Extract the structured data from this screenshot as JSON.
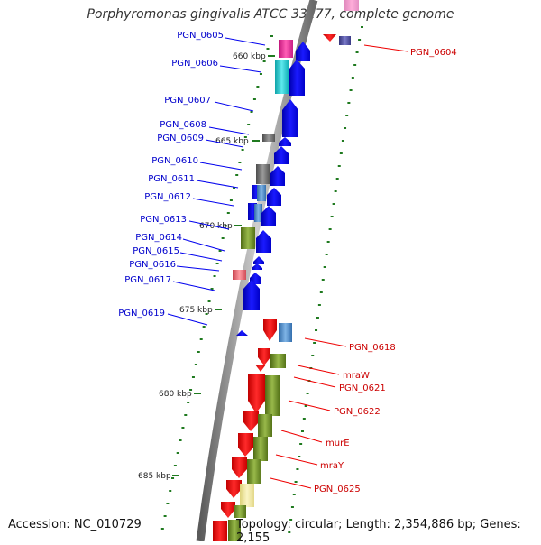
{
  "title": "Porphyromonas gingivalis ATCC 33277, complete genome",
  "accession": "Accession: NC_010729",
  "summary": "Topology: circular; Length: 2,354,886 bp; Genes: 2,155",
  "colors": {
    "forward": "#0000ee",
    "reverse": "#ee0000",
    "magenta": "#ee2b9a",
    "cyan": "#19c9cf",
    "gray": "#6e6e6e",
    "steel": "#4a87c3",
    "olive": "#6a8b22",
    "pink": "#e86a74",
    "cream": "#f3eaa1",
    "slate": "#4b4b9b",
    "tick": "#1f7a1f",
    "backbone": "#8c8c8c"
  },
  "scale": {
    "labels": [
      "660 kbp",
      "665 kbp",
      "670 kbp",
      "675 kbp",
      "680 kbp",
      "685 kbp"
    ]
  },
  "forward_labels": [
    "PGN_0605",
    "PGN_0606",
    "PGN_0607",
    "PGN_0608",
    "PGN_0609",
    "PGN_0610",
    "PGN_0611",
    "PGN_0612",
    "PGN_0613",
    "PGN_0614",
    "PGN_0615",
    "PGN_0616",
    "PGN_0617",
    "PGN_0619"
  ],
  "reverse_labels": [
    "PGN_0604",
    "PGN_0618",
    "mraW",
    "PGN_0621",
    "PGN_0622",
    "murE",
    "mraY",
    "PGN_0625"
  ]
}
